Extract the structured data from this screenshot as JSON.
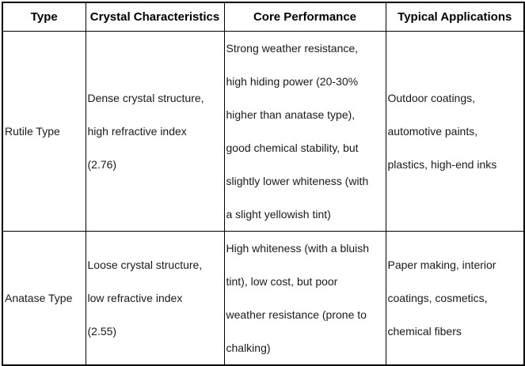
{
  "table": {
    "columns": [
      {
        "label": "Type"
      },
      {
        "label": "Crystal Characteristics"
      },
      {
        "label": "Core Performance"
      },
      {
        "label": "Typical Applications"
      }
    ],
    "rows": [
      {
        "type": "Rutile Type",
        "crystal_characteristics": "Dense crystal structure,\nhigh refractive index\n(2.76)",
        "core_performance": "Strong weather resistance,\nhigh hiding power (20-30%\nhigher than anatase type),\ngood chemical stability, but\nslightly lower whiteness (with\na slight yellowish tint)",
        "typical_applications": "Outdoor coatings,\nautomotive paints,\nplastics, high-end inks"
      },
      {
        "type": "Anatase Type",
        "crystal_characteristics": "Loose crystal structure,\nlow refractive index\n(2.55)",
        "core_performance": "High whiteness (with a bluish\ntint), low cost, but poor\nweather resistance (prone to\nchalking)",
        "typical_applications": "Paper making, interior\ncoatings, cosmetics,\nchemical fibers"
      }
    ]
  },
  "colors": {
    "border": "#000000",
    "text": "#1a1a1a",
    "background": "#ffffff"
  }
}
